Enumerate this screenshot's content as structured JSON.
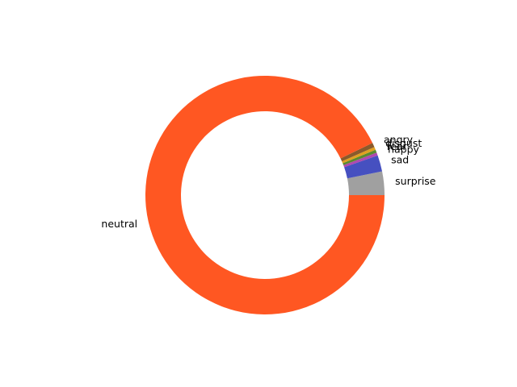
{
  "chart_data": {
    "type": "pie",
    "style": "donut",
    "start_angle_deg": 0,
    "direction": "counterclockwise",
    "title": "",
    "slices": [
      {
        "label": "surprise",
        "value": 3.2,
        "color": "#a0a0a0"
      },
      {
        "label": "sad",
        "value": 2.2,
        "color": "#4650c0"
      },
      {
        "label": "happy",
        "value": 0.4,
        "color": "#b048b0"
      },
      {
        "label": "fear",
        "value": 0.4,
        "color": "#5a8a30"
      },
      {
        "label": "disgust",
        "value": 0.4,
        "color": "#e0a020"
      },
      {
        "label": "angry",
        "value": 0.6,
        "color": "#8b5a2b"
      },
      {
        "label": "neutral",
        "value": 92.8,
        "color": "#ff5722"
      }
    ]
  }
}
